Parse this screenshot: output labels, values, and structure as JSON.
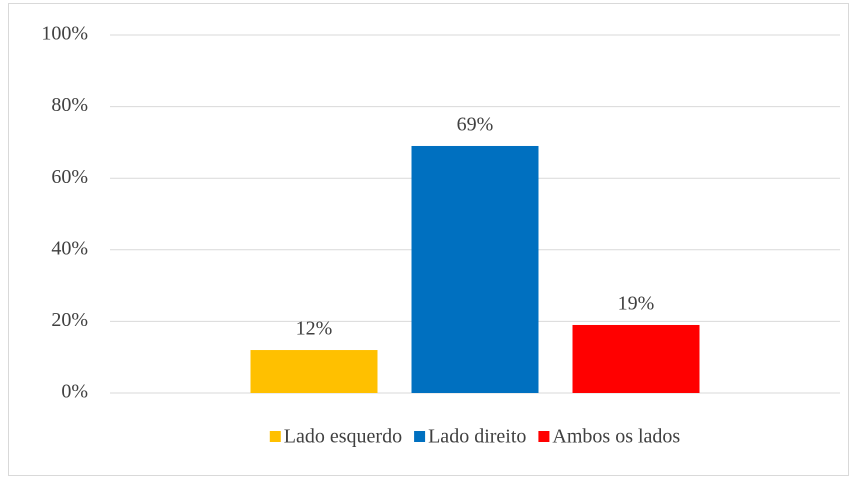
{
  "chart_data": {
    "type": "bar",
    "categories": [
      null
    ],
    "series": [
      {
        "name": "Lado esquerdo",
        "color": "#ffc000",
        "values": [
          12
        ],
        "value_labels": [
          "12%"
        ]
      },
      {
        "name": "Lado direito",
        "color": "#0070c0",
        "values": [
          69
        ],
        "value_labels": [
          "69%"
        ]
      },
      {
        "name": "Ambos os lados",
        "color": "#ff0000",
        "values": [
          19
        ],
        "value_labels": [
          "19%"
        ]
      }
    ],
    "ylim": [
      0,
      100
    ],
    "yticks": [
      {
        "value": 0,
        "label": "0%"
      },
      {
        "value": 20,
        "label": "20%"
      },
      {
        "value": 40,
        "label": "40%"
      },
      {
        "value": 60,
        "label": "60%"
      },
      {
        "value": 80,
        "label": "80%"
      },
      {
        "value": 100,
        "label": "100%"
      }
    ],
    "grid": true,
    "legend": "bottom"
  }
}
